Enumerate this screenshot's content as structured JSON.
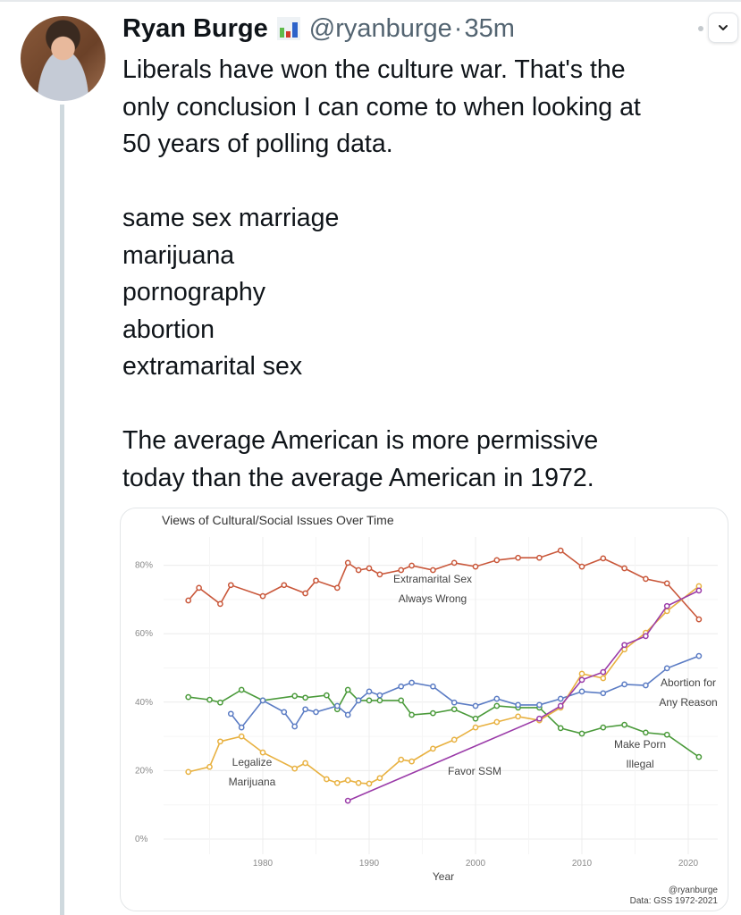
{
  "tweet": {
    "author_name": "Ryan Burge",
    "author_emoji": "bar-chart-emoji",
    "handle": "@ryanburge",
    "separator": "·",
    "time": "35m",
    "paragraphs": [
      [
        "Liberals have won the culture war. That's the",
        "only conclusion I can come to when looking at",
        "50 years of polling data."
      ],
      [
        "same sex marriage",
        "marijuana",
        "pornography",
        "abortion",
        "extramarital sex"
      ],
      [
        "The average American is more permissive",
        "today than the average American in 1972."
      ]
    ],
    "menu_icon": "chevron-down-icon"
  },
  "colors": {
    "extramarital": "#c9573a",
    "porn": "#4a9a3a",
    "abortion": "#5b7cc4",
    "marijuana": "#e8b140",
    "ssm": "#9a3aa8",
    "thread": "#cfd9de",
    "handle_gray": "#536471"
  },
  "chart_data": {
    "type": "line",
    "title": "Views of Cultural/Social Issues Over Time",
    "xlabel": "Year",
    "ylabel": "",
    "xlim": [
      1972,
      2022
    ],
    "ylim": [
      0,
      85
    ],
    "x_ticks": [
      1980,
      1990,
      2000,
      2010,
      2020
    ],
    "x_tick_labels": [
      "1980",
      "1990",
      "2000",
      "2010",
      "2020"
    ],
    "y_ticks": [
      0,
      20,
      40,
      60,
      80
    ],
    "y_tick_labels": [
      "0%",
      "20%",
      "40%",
      "60%",
      "80%"
    ],
    "grid": true,
    "credit": [
      "@ryanburge",
      "Data: GSS 1972-2021"
    ],
    "series": [
      {
        "name": "extramarital",
        "label": [
          "Extramarital Sex",
          "Always Wrong"
        ],
        "x": [
          1973,
          1974,
          1976,
          1977,
          1980,
          1982,
          1984,
          1985,
          1987,
          1988,
          1989,
          1990,
          1991,
          1993,
          1994,
          1996,
          1998,
          2000,
          2002,
          2004,
          2006,
          2008,
          2010,
          2012,
          2014,
          2016,
          2018,
          2021
        ],
        "y": [
          69.7,
          73.4,
          68.7,
          74.2,
          71.0,
          74.2,
          71.8,
          75.5,
          73.4,
          80.7,
          78.6,
          79.1,
          77.3,
          78.6,
          79.9,
          78.6,
          80.7,
          79.6,
          81.5,
          82.2,
          82.2,
          84.3,
          79.6,
          82.0,
          79.1,
          76.0,
          74.7,
          64.2
        ]
      },
      {
        "name": "porn",
        "label": [
          "Make Porn",
          "Illegal"
        ],
        "x": [
          1973,
          1975,
          1976,
          1978,
          1980,
          1983,
          1984,
          1986,
          1987,
          1988,
          1989,
          1990,
          1991,
          1993,
          1994,
          1996,
          1998,
          2000,
          2002,
          2004,
          2006,
          2008,
          2010,
          2012,
          2014,
          2016,
          2018,
          2021
        ],
        "y": [
          41.5,
          40.7,
          39.9,
          43.6,
          40.5,
          41.8,
          41.3,
          42.0,
          37.9,
          43.6,
          40.5,
          40.5,
          40.5,
          40.5,
          36.3,
          36.8,
          37.9,
          35.2,
          38.9,
          38.4,
          38.4,
          32.4,
          30.8,
          32.6,
          33.4,
          31.1,
          30.5,
          24.0
        ]
      },
      {
        "name": "abortion",
        "label": [
          "Abortion for",
          "Any Reason"
        ],
        "x": [
          1977,
          1978,
          1980,
          1982,
          1983,
          1984,
          1985,
          1987,
          1988,
          1989,
          1990,
          1991,
          1993,
          1994,
          1996,
          1998,
          2000,
          2002,
          2004,
          2006,
          2008,
          2010,
          2012,
          2014,
          2016,
          2018,
          2021
        ],
        "y": [
          36.6,
          32.6,
          40.5,
          37.1,
          32.9,
          37.9,
          37.1,
          38.9,
          36.3,
          40.5,
          43.1,
          42.0,
          44.6,
          45.7,
          44.6,
          39.9,
          38.9,
          41.0,
          39.2,
          39.2,
          41.0,
          43.1,
          42.6,
          45.2,
          44.9,
          49.9,
          53.5
        ]
      },
      {
        "name": "marijuana",
        "label": [
          "Legalize",
          "Marijuana"
        ],
        "x": [
          1973,
          1975,
          1976,
          1978,
          1980,
          1983,
          1984,
          1986,
          1987,
          1988,
          1989,
          1990,
          1991,
          1993,
          1994,
          1996,
          1998,
          2000,
          2002,
          2004,
          2006,
          2008,
          2010,
          2012,
          2014,
          2016,
          2018,
          2021
        ],
        "y": [
          19.6,
          21.1,
          28.5,
          30.0,
          25.3,
          20.6,
          22.2,
          17.5,
          16.4,
          17.2,
          16.4,
          16.2,
          17.8,
          23.2,
          22.7,
          26.4,
          29.0,
          32.6,
          34.2,
          35.8,
          34.7,
          38.4,
          48.3,
          47.0,
          55.4,
          60.3,
          66.6,
          73.9
        ]
      },
      {
        "name": "ssm",
        "label": [
          "Favor SSM"
        ],
        "x": [
          1988,
          2006,
          2008,
          2010,
          2012,
          2014,
          2016,
          2018,
          2021
        ],
        "y": [
          11.2,
          35.2,
          38.9,
          46.5,
          48.8,
          56.7,
          59.3,
          68.1,
          72.6
        ]
      }
    ]
  }
}
